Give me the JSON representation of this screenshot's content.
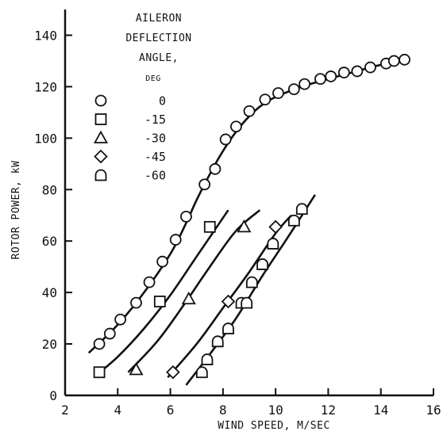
{
  "chart_data": {
    "type": "scatter",
    "title": "",
    "xlabel": "WIND SPEED, M/SEC",
    "ylabel": "ROTOR POWER, kW",
    "xlim": [
      2,
      16
    ],
    "ylim": [
      0,
      150
    ],
    "xticks": [
      2,
      4,
      6,
      8,
      10,
      12,
      14,
      16
    ],
    "yticks": [
      0,
      20,
      40,
      60,
      80,
      100,
      120,
      140
    ],
    "grid": false,
    "legend": {
      "placement": "top-left",
      "title": [
        "AILERON",
        "DEFLECTION",
        "ANGLE,",
        "DEG"
      ]
    },
    "series": [
      {
        "name": "0",
        "marker": "circle",
        "points": [
          [
            3.3,
            20
          ],
          [
            3.7,
            24
          ],
          [
            4.1,
            29.5
          ],
          [
            4.7,
            36
          ],
          [
            5.2,
            44
          ],
          [
            5.7,
            52
          ],
          [
            6.2,
            60.5
          ],
          [
            6.6,
            69.5
          ],
          [
            7.3,
            82
          ],
          [
            7.7,
            88
          ],
          [
            8.1,
            99.5
          ],
          [
            8.5,
            104.5
          ],
          [
            9.0,
            110.5
          ],
          [
            9.6,
            115
          ],
          [
            10.1,
            117.5
          ],
          [
            10.7,
            119
          ],
          [
            11.1,
            121
          ],
          [
            11.7,
            123
          ],
          [
            12.1,
            124
          ],
          [
            12.6,
            125.5
          ],
          [
            13.1,
            126
          ],
          [
            13.6,
            127.5
          ],
          [
            14.2,
            129
          ],
          [
            14.5,
            130
          ],
          [
            14.9,
            130.5
          ]
        ],
        "curve": [
          [
            2.9,
            16.5
          ],
          [
            4.0,
            27.5
          ],
          [
            5.0,
            40
          ],
          [
            6.0,
            55
          ],
          [
            6.6,
            67
          ],
          [
            7.0,
            76
          ],
          [
            7.5,
            86
          ],
          [
            8.0,
            95
          ],
          [
            8.5,
            102.5
          ],
          [
            9.0,
            108.5
          ],
          [
            9.5,
            113
          ],
          [
            10.0,
            116
          ],
          [
            11.0,
            120
          ],
          [
            12.0,
            123
          ],
          [
            13.0,
            125.8
          ],
          [
            14.0,
            128.5
          ],
          [
            15.0,
            130.5
          ]
        ]
      },
      {
        "name": "-15",
        "marker": "square",
        "points": [
          [
            3.3,
            9
          ],
          [
            5.6,
            36.5
          ],
          [
            7.5,
            65.5
          ]
        ],
        "curve": [
          [
            3.2,
            8
          ],
          [
            4.0,
            15
          ],
          [
            5.0,
            26
          ],
          [
            6.0,
            39
          ],
          [
            7.0,
            54
          ],
          [
            8.2,
            72
          ]
        ]
      },
      {
        "name": "-30",
        "marker": "triangle",
        "points": [
          [
            4.7,
            10
          ],
          [
            6.7,
            37.5
          ],
          [
            8.8,
            65.5
          ]
        ],
        "curve": [
          [
            4.4,
            9
          ],
          [
            5.5,
            21
          ],
          [
            6.5,
            35
          ],
          [
            7.5,
            50
          ],
          [
            8.5,
            64
          ],
          [
            9.4,
            72
          ]
        ]
      },
      {
        "name": "-45",
        "marker": "diamond",
        "points": [
          [
            6.1,
            9
          ],
          [
            8.2,
            36.5
          ],
          [
            10.0,
            65.5
          ]
        ],
        "curve": [
          [
            5.9,
            7
          ],
          [
            7.0,
            20
          ],
          [
            8.0,
            34
          ],
          [
            9.0,
            48
          ],
          [
            10.0,
            63
          ],
          [
            10.6,
            70
          ]
        ]
      },
      {
        "name": "-60",
        "marker": "roundtop",
        "points": [
          [
            7.2,
            9
          ],
          [
            7.4,
            14
          ],
          [
            7.8,
            21
          ],
          [
            8.2,
            26
          ],
          [
            8.7,
            36
          ],
          [
            8.9,
            36
          ],
          [
            9.1,
            44
          ],
          [
            9.5,
            51
          ],
          [
            9.9,
            59
          ],
          [
            10.7,
            68
          ],
          [
            11.0,
            72.5
          ]
        ],
        "curve": [
          [
            6.6,
            4
          ],
          [
            7.5,
            16
          ],
          [
            8.5,
            30
          ],
          [
            9.5,
            46.5
          ],
          [
            10.5,
            62
          ],
          [
            11.5,
            78
          ]
        ]
      }
    ]
  }
}
